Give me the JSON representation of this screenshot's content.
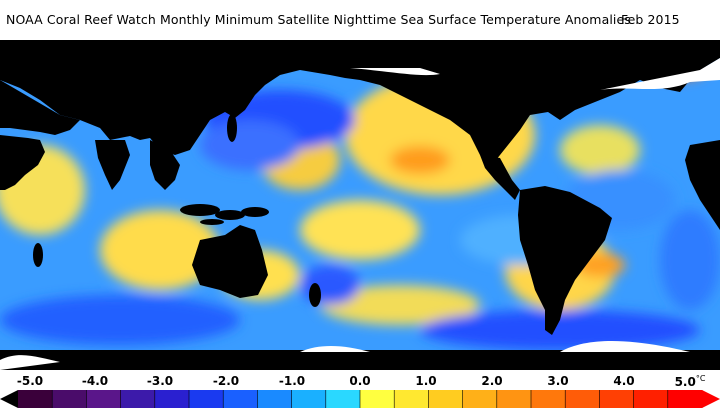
{
  "header": {
    "title": "NOAA Coral Reef Watch Monthly Minimum Satellite Nighttime Sea Surface Temperature Anomalies",
    "date": "Feb 2015"
  },
  "legend": {
    "ticks": [
      "-5.0",
      "-4.0",
      "-3.0",
      "-2.0",
      "-1.0",
      "0.0",
      "1.0",
      "2.0",
      "3.0",
      "4.0",
      "5.0"
    ],
    "unit": "°C",
    "colors": [
      "#3a003a",
      "#4a0c6a",
      "#5a168a",
      "#3c1aaa",
      "#2a20d0",
      "#1a3af0",
      "#1a60ff",
      "#1a8aff",
      "#1ab0ff",
      "#2ad8ff",
      "#ffff40",
      "#ffe830",
      "#ffcc20",
      "#ffb018",
      "#ff9412",
      "#ff780c",
      "#ff5c08",
      "#ff4004",
      "#ff2000",
      "#ff0000"
    ]
  },
  "map": {
    "land_color": "#000000",
    "ice_color": "#ffffff",
    "ocean_base": "#3a9cff"
  }
}
